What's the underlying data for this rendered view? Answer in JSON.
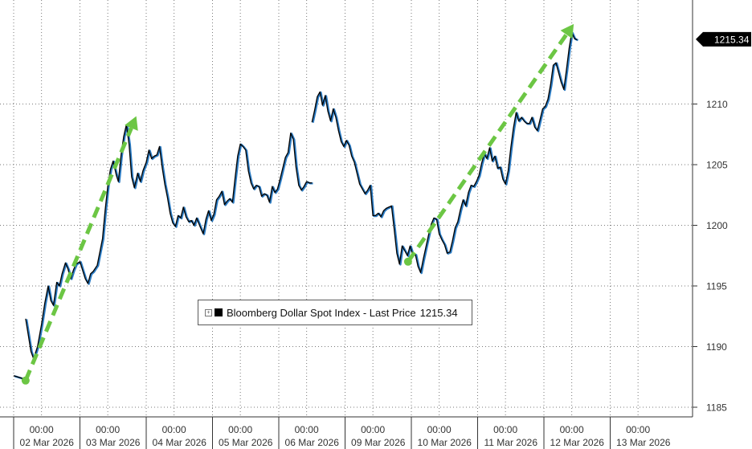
{
  "chart_data": {
    "type": "line",
    "title": "",
    "ylabel": "",
    "xlabel": "",
    "ylim": [
      1185,
      1218
    ],
    "yticks": [
      1185,
      1190,
      1195,
      1200,
      1205,
      1210
    ],
    "last_price_label": "1215.34",
    "x_time_labels": [
      "00:00",
      "00:00",
      "00:00",
      "00:00",
      "00:00",
      "00:00",
      "00:00",
      "00:00",
      "00:00",
      "00:00"
    ],
    "x_date_labels": [
      "02 Mar 2026",
      "03 Mar 2026",
      "04 Mar 2026",
      "05 Mar 2026",
      "06 Mar 2026",
      "09 Mar 2026",
      "10 Mar 2026",
      "11 Mar 2026",
      "12 Mar 2026",
      "13 Mar 2026"
    ],
    "legend": {
      "expand_glyph": "+",
      "label": "Bloomberg Dollar Spot Index - Last Price",
      "value": "1215.34"
    },
    "series": [
      {
        "name": "Bloomberg Dollar Spot Index - Last Price",
        "color": "#000000",
        "segments": [
          [
            [
              0.0,
              1187.6
            ],
            [
              0.12,
              1187.4
            ],
            [
              0.18,
              1187.2
            ]
          ],
          [
            [
              0.18,
              1192.3
            ],
            [
              0.22,
              1191.0
            ],
            [
              0.26,
              1189.6
            ],
            [
              0.3,
              1189.0
            ],
            [
              0.36,
              1190.0
            ],
            [
              0.42,
              1191.8
            ],
            [
              0.47,
              1193.6
            ],
            [
              0.52,
              1195.0
            ],
            [
              0.56,
              1193.8
            ],
            [
              0.6,
              1193.4
            ],
            [
              0.65,
              1195.3
            ],
            [
              0.69,
              1195.0
            ],
            [
              0.73,
              1196.0
            ],
            [
              0.78,
              1196.9
            ],
            [
              0.82,
              1196.4
            ],
            [
              0.86,
              1195.6
            ],
            [
              0.9,
              1196.3
            ],
            [
              0.94,
              1196.8
            ],
            [
              1.0,
              1197.0
            ],
            [
              1.04,
              1196.3
            ],
            [
              1.08,
              1195.6
            ],
            [
              1.12,
              1195.2
            ],
            [
              1.16,
              1196.0
            ],
            [
              1.2,
              1196.2
            ],
            [
              1.26,
              1196.7
            ],
            [
              1.3,
              1197.8
            ],
            [
              1.34,
              1198.9
            ],
            [
              1.38,
              1201.2
            ],
            [
              1.42,
              1203.2
            ],
            [
              1.46,
              1204.6
            ],
            [
              1.5,
              1205.3
            ],
            [
              1.55,
              1204.1
            ],
            [
              1.58,
              1203.6
            ],
            [
              1.62,
              1205.8
            ],
            [
              1.66,
              1207.3
            ],
            [
              1.7,
              1208.3
            ],
            [
              1.74,
              1206.7
            ],
            [
              1.78,
              1204.0
            ],
            [
              1.82,
              1203.1
            ],
            [
              1.87,
              1204.3
            ],
            [
              1.91,
              1203.6
            ],
            [
              1.95,
              1204.5
            ],
            [
              2.0,
              1205.2
            ],
            [
              2.04,
              1206.2
            ],
            [
              2.08,
              1205.5
            ],
            [
              2.12,
              1205.7
            ],
            [
              2.16,
              1205.8
            ],
            [
              2.2,
              1206.5
            ],
            [
              2.24,
              1204.8
            ],
            [
              2.28,
              1203.4
            ],
            [
              2.32,
              1202.3
            ],
            [
              2.36,
              1201.0
            ],
            [
              2.4,
              1200.2
            ],
            [
              2.44,
              1199.9
            ],
            [
              2.48,
              1200.8
            ],
            [
              2.52,
              1200.6
            ],
            [
              2.56,
              1201.5
            ],
            [
              2.6,
              1200.7
            ],
            [
              2.64,
              1200.3
            ],
            [
              2.68,
              1200.4
            ],
            [
              2.72,
              1200.0
            ],
            [
              2.76,
              1200.6
            ],
            [
              2.82,
              1199.8
            ],
            [
              2.86,
              1199.3
            ],
            [
              2.9,
              1200.5
            ],
            [
              2.94,
              1201.2
            ],
            [
              2.98,
              1200.4
            ],
            [
              3.02,
              1200.9
            ],
            [
              3.06,
              1202.1
            ],
            [
              3.1,
              1202.4
            ],
            [
              3.14,
              1202.8
            ],
            [
              3.18,
              1201.7
            ],
            [
              3.22,
              1202.0
            ],
            [
              3.26,
              1202.2
            ],
            [
              3.3,
              1201.9
            ],
            [
              3.34,
              1203.9
            ],
            [
              3.38,
              1205.7
            ],
            [
              3.42,
              1206.7
            ],
            [
              3.46,
              1206.5
            ],
            [
              3.5,
              1206.2
            ],
            [
              3.54,
              1204.5
            ],
            [
              3.58,
              1203.5
            ],
            [
              3.62,
              1203.0
            ],
            [
              3.66,
              1203.3
            ],
            [
              3.7,
              1203.2
            ],
            [
              3.74,
              1202.4
            ],
            [
              3.78,
              1202.6
            ],
            [
              3.82,
              1202.5
            ],
            [
              3.86,
              1201.9
            ],
            [
              3.9,
              1203.2
            ],
            [
              3.94,
              1202.7
            ],
            [
              3.98,
              1203.0
            ],
            [
              4.02,
              1203.8
            ],
            [
              4.06,
              1204.7
            ],
            [
              4.1,
              1205.6
            ],
            [
              4.14,
              1206.0
            ],
            [
              4.18,
              1207.6
            ],
            [
              4.22,
              1207.1
            ],
            [
              4.26,
              1204.8
            ],
            [
              4.3,
              1203.3
            ],
            [
              4.34,
              1202.9
            ],
            [
              4.38,
              1203.2
            ],
            [
              4.42,
              1203.6
            ],
            [
              4.46,
              1203.5
            ],
            [
              4.5,
              1203.5
            ]
          ],
          [
            [
              4.5,
              1208.5
            ],
            [
              4.54,
              1209.5
            ],
            [
              4.58,
              1210.6
            ],
            [
              4.62,
              1211.0
            ],
            [
              4.66,
              1209.9
            ],
            [
              4.7,
              1210.7
            ],
            [
              4.74,
              1209.4
            ],
            [
              4.78,
              1208.6
            ],
            [
              4.82,
              1209.6
            ],
            [
              4.86,
              1208.9
            ],
            [
              4.9,
              1207.8
            ],
            [
              4.94,
              1206.9
            ],
            [
              4.98,
              1206.5
            ],
            [
              5.02,
              1207.0
            ],
            [
              5.06,
              1206.6
            ],
            [
              5.1,
              1205.7
            ],
            [
              5.14,
              1205.2
            ],
            [
              5.18,
              1204.3
            ],
            [
              5.22,
              1203.4
            ],
            [
              5.26,
              1203.0
            ],
            [
              5.3,
              1202.6
            ],
            [
              5.34,
              1202.9
            ],
            [
              5.38,
              1203.3
            ],
            [
              5.42,
              1200.8
            ],
            [
              5.46,
              1200.8
            ],
            [
              5.5,
              1201.0
            ],
            [
              5.54,
              1200.7
            ],
            [
              5.58,
              1201.2
            ],
            [
              5.62,
              1201.4
            ],
            [
              5.66,
              1201.5
            ],
            [
              5.7,
              1201.6
            ],
            [
              5.74,
              1199.7
            ],
            [
              5.78,
              1197.7
            ],
            [
              5.82,
              1196.8
            ],
            [
              5.86,
              1198.3
            ],
            [
              5.9,
              1197.9
            ],
            [
              5.94,
              1197.5
            ],
            [
              5.98,
              1198.3
            ],
            [
              6.02,
              1197.6
            ],
            [
              6.06,
              1197.6
            ],
            [
              6.1,
              1196.6
            ],
            [
              6.14,
              1196.1
            ],
            [
              6.18,
              1197.2
            ],
            [
              6.22,
              1198.2
            ],
            [
              6.26,
              1199.2
            ],
            [
              6.3,
              1200.1
            ],
            [
              6.34,
              1200.6
            ],
            [
              6.38,
              1200.5
            ],
            [
              6.42,
              1199.3
            ],
            [
              6.46,
              1198.8
            ],
            [
              6.5,
              1198.4
            ],
            [
              6.54,
              1197.7
            ],
            [
              6.58,
              1197.8
            ],
            [
              6.62,
              1198.7
            ],
            [
              6.66,
              1199.8
            ],
            [
              6.7,
              1200.3
            ],
            [
              6.74,
              1201.3
            ],
            [
              6.78,
              1202.1
            ],
            [
              6.82,
              1201.6
            ],
            [
              6.86,
              1202.7
            ],
            [
              6.9,
              1203.3
            ],
            [
              6.94,
              1203.2
            ],
            [
              6.98,
              1203.6
            ],
            [
              7.02,
              1204.1
            ],
            [
              7.06,
              1205.1
            ],
            [
              7.1,
              1205.9
            ],
            [
              7.14,
              1205.5
            ],
            [
              7.18,
              1206.4
            ],
            [
              7.22,
              1205.3
            ],
            [
              7.26,
              1205.7
            ],
            [
              7.3,
              1204.7
            ],
            [
              7.34,
              1204.8
            ],
            [
              7.38,
              1203.8
            ],
            [
              7.42,
              1203.4
            ],
            [
              7.46,
              1204.5
            ],
            [
              7.5,
              1206.4
            ],
            [
              7.54,
              1208.0
            ],
            [
              7.58,
              1209.3
            ],
            [
              7.62,
              1208.6
            ],
            [
              7.66,
              1208.9
            ],
            [
              7.7,
              1208.6
            ],
            [
              7.74,
              1208.4
            ],
            [
              7.78,
              1208.4
            ],
            [
              7.82,
              1208.9
            ],
            [
              7.86,
              1208.1
            ],
            [
              7.9,
              1207.8
            ],
            [
              7.94,
              1208.7
            ],
            [
              7.98,
              1209.6
            ],
            [
              8.02,
              1209.8
            ],
            [
              8.06,
              1210.4
            ],
            [
              8.1,
              1211.6
            ],
            [
              8.14,
              1213.2
            ],
            [
              8.18,
              1213.4
            ],
            [
              8.22,
              1212.6
            ],
            [
              8.26,
              1211.8
            ],
            [
              8.3,
              1211.2
            ],
            [
              8.34,
              1212.8
            ],
            [
              8.38,
              1214.6
            ],
            [
              8.42,
              1215.9
            ],
            [
              8.46,
              1215.4
            ],
            [
              8.5,
              1215.3
            ]
          ]
        ]
      }
    ],
    "annotations": [
      {
        "type": "trend-arrow",
        "color": "#6cc644",
        "from": [
          0.18,
          1187.2
        ],
        "to": [
          1.85,
          1209.0
        ]
      },
      {
        "type": "trend-arrow",
        "color": "#6cc644",
        "from": [
          5.95,
          1197.0
        ],
        "to": [
          8.45,
          1216.6
        ]
      }
    ],
    "colors": {
      "background": "#ffffff",
      "grid": "#7a7a7a",
      "axis_text": "#333333",
      "last_label_bg": "#000000",
      "last_label_text": "#ffffff",
      "arrow": "#6cc644",
      "line_shadow": "#2c7cc4"
    }
  }
}
